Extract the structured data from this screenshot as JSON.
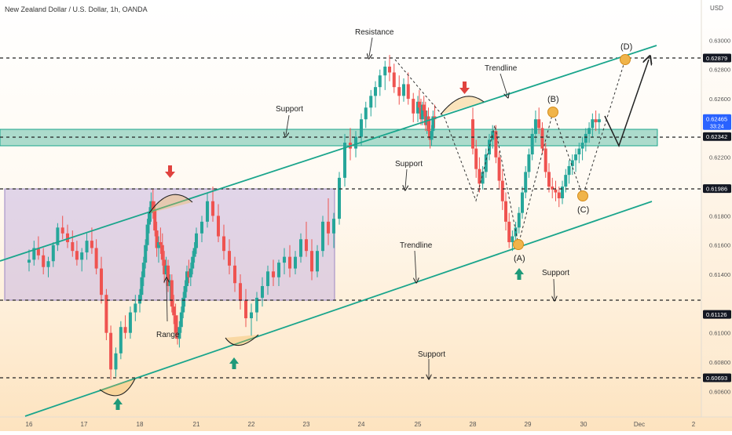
{
  "chart_data": {
    "type": "candlestick",
    "title": "New Zealand Dollar / U.S. Dollar, 1h, OANDA",
    "currency": "USD",
    "x_ticks": [
      "16",
      "17",
      "18",
      "21",
      "22",
      "23",
      "24",
      "25",
      "28",
      "29",
      "30",
      "Dec",
      "2"
    ],
    "y_ticks": [
      "0.63000",
      "0.62800",
      "0.62600",
      "0.62200",
      "0.62000",
      "0.61800",
      "0.61600",
      "0.61400",
      "0.61000",
      "0.60800",
      "0.60600"
    ],
    "price_tags": [
      {
        "value": "0.62879",
        "style": "dark"
      },
      {
        "value": "0.62465",
        "style": "blue",
        "sub": "33:24"
      },
      {
        "value": "0.62342",
        "style": "dark"
      },
      {
        "value": "0.61986",
        "style": "dark"
      },
      {
        "value": "0.61126",
        "style": "dark"
      },
      {
        "value": "0.60693",
        "style": "dark"
      }
    ],
    "ylim": [
      0.6053,
      0.632
    ],
    "candles": [
      [
        16.0,
        0.6148,
        0.6157,
        0.6142,
        0.615
      ],
      [
        16.09,
        0.615,
        0.6163,
        0.6146,
        0.6158
      ],
      [
        16.17,
        0.6158,
        0.6166,
        0.615,
        0.6153
      ],
      [
        16.26,
        0.6153,
        0.6158,
        0.614,
        0.6145
      ],
      [
        16.35,
        0.6145,
        0.6152,
        0.6138,
        0.6149
      ],
      [
        16.44,
        0.6149,
        0.6162,
        0.6145,
        0.616
      ],
      [
        16.52,
        0.616,
        0.6175,
        0.6156,
        0.6172
      ],
      [
        16.61,
        0.6172,
        0.618,
        0.6164,
        0.6168
      ],
      [
        16.7,
        0.6168,
        0.6174,
        0.6158,
        0.6162
      ],
      [
        16.79,
        0.6162,
        0.617,
        0.6152,
        0.6156
      ],
      [
        16.87,
        0.6156,
        0.6163,
        0.6146,
        0.615
      ],
      [
        16.96,
        0.615,
        0.6158,
        0.6142,
        0.6155
      ],
      [
        17.05,
        0.6155,
        0.6168,
        0.615,
        0.6163
      ],
      [
        17.14,
        0.6163,
        0.6172,
        0.6154,
        0.6158
      ],
      [
        17.22,
        0.6158,
        0.6164,
        0.614,
        0.6144
      ],
      [
        17.31,
        0.6144,
        0.6152,
        0.612,
        0.6126
      ],
      [
        17.4,
        0.6126,
        0.613,
        0.6095,
        0.61
      ],
      [
        17.48,
        0.61,
        0.6105,
        0.6068,
        0.6075
      ],
      [
        17.57,
        0.6075,
        0.609,
        0.607,
        0.6086
      ],
      [
        17.66,
        0.6086,
        0.6108,
        0.6082,
        0.6104
      ],
      [
        17.74,
        0.6104,
        0.6112,
        0.6096,
        0.61
      ],
      [
        17.83,
        0.61,
        0.6118,
        0.6096,
        0.6114
      ],
      [
        17.92,
        0.6114,
        0.6126,
        0.6108,
        0.612
      ],
      [
        18.0,
        0.612,
        0.613,
        0.6114,
        0.6126
      ],
      [
        18.1,
        0.6126,
        0.6142,
        0.6122,
        0.6138
      ],
      [
        18.2,
        0.6138,
        0.6152,
        0.6132,
        0.6148
      ],
      [
        18.3,
        0.6148,
        0.6164,
        0.6144,
        0.616
      ],
      [
        18.4,
        0.616,
        0.6178,
        0.6156,
        0.6174
      ],
      [
        18.5,
        0.6174,
        0.6186,
        0.6168,
        0.6182
      ],
      [
        18.6,
        0.6182,
        0.6196,
        0.6176,
        0.619
      ],
      [
        18.7,
        0.619,
        0.6198,
        0.6178,
        0.6184
      ],
      [
        18.8,
        0.6184,
        0.619,
        0.6166,
        0.617
      ],
      [
        18.9,
        0.617,
        0.6176,
        0.6152,
        0.6158
      ],
      [
        19.0,
        0.6158,
        0.6166,
        0.6148,
        0.6162
      ],
      [
        19.1,
        0.6162,
        0.6172,
        0.6154,
        0.616
      ],
      [
        19.2,
        0.616,
        0.6168,
        0.6146,
        0.615
      ],
      [
        19.3,
        0.615,
        0.6156,
        0.6134,
        0.614
      ],
      [
        19.4,
        0.614,
        0.6152,
        0.6136,
        0.6146
      ],
      [
        19.5,
        0.6146,
        0.615,
        0.6128,
        0.6132
      ],
      [
        19.6,
        0.6132,
        0.614,
        0.6122,
        0.6136
      ],
      [
        19.7,
        0.6136,
        0.614,
        0.6114,
        0.6118
      ],
      [
        19.8,
        0.6118,
        0.6126,
        0.6106,
        0.6112
      ],
      [
        19.9,
        0.6112,
        0.612,
        0.6096,
        0.61
      ],
      [
        20.0,
        0.61,
        0.6112,
        0.6092,
        0.6096
      ],
      [
        20.1,
        0.6096,
        0.6108,
        0.609,
        0.6104
      ],
      [
        20.2,
        0.6104,
        0.6118,
        0.61,
        0.6114
      ],
      [
        20.3,
        0.6114,
        0.6128,
        0.611,
        0.6124
      ],
      [
        20.4,
        0.6124,
        0.6136,
        0.6118,
        0.6132
      ],
      [
        20.5,
        0.6132,
        0.6146,
        0.6128,
        0.6142
      ],
      [
        20.6,
        0.6142,
        0.615,
        0.6134,
        0.6138
      ],
      [
        20.7,
        0.6138,
        0.6148,
        0.6132,
        0.6144
      ],
      [
        20.8,
        0.6144,
        0.6156,
        0.614,
        0.6152
      ],
      [
        20.9,
        0.6152,
        0.6162,
        0.6148,
        0.6158
      ],
      [
        21.0,
        0.6158,
        0.6172,
        0.6154,
        0.6168
      ],
      [
        21.1,
        0.6168,
        0.618,
        0.6162,
        0.6176
      ],
      [
        21.2,
        0.6176,
        0.6196,
        0.6172,
        0.619
      ],
      [
        21.3,
        0.619,
        0.62,
        0.6176,
        0.618
      ],
      [
        21.4,
        0.618,
        0.6188,
        0.6162,
        0.6166
      ],
      [
        21.5,
        0.6166,
        0.6174,
        0.615,
        0.6156
      ],
      [
        21.6,
        0.6156,
        0.6164,
        0.614,
        0.6146
      ],
      [
        21.7,
        0.6146,
        0.6152,
        0.6128,
        0.6134
      ],
      [
        21.8,
        0.6134,
        0.614,
        0.6116,
        0.6122
      ],
      [
        21.9,
        0.6122,
        0.613,
        0.6104,
        0.611
      ],
      [
        22.0,
        0.611,
        0.612,
        0.6098,
        0.6114
      ],
      [
        22.1,
        0.6114,
        0.6128,
        0.6108,
        0.6124
      ],
      [
        22.2,
        0.6124,
        0.6138,
        0.6118,
        0.6132
      ],
      [
        22.3,
        0.6132,
        0.6146,
        0.6126,
        0.6142
      ],
      [
        22.4,
        0.6142,
        0.615,
        0.6132,
        0.6138
      ],
      [
        22.5,
        0.6138,
        0.615,
        0.6132,
        0.6148
      ],
      [
        22.6,
        0.6148,
        0.6158,
        0.614,
        0.6152
      ],
      [
        22.7,
        0.6152,
        0.616,
        0.6138,
        0.6144
      ],
      [
        22.8,
        0.6144,
        0.6156,
        0.614,
        0.6152
      ],
      [
        22.9,
        0.6152,
        0.6168,
        0.6148,
        0.6164
      ],
      [
        23.0,
        0.6164,
        0.6176,
        0.6152,
        0.6156
      ],
      [
        23.1,
        0.6156,
        0.6164,
        0.6136,
        0.6142
      ],
      [
        23.2,
        0.6142,
        0.616,
        0.6138,
        0.6156
      ],
      [
        23.3,
        0.6156,
        0.618,
        0.6152,
        0.6176
      ],
      [
        23.4,
        0.6176,
        0.6192,
        0.616,
        0.6168
      ],
      [
        23.5,
        0.6168,
        0.6182,
        0.6158,
        0.6178
      ],
      [
        23.6,
        0.6178,
        0.621,
        0.6174,
        0.6206
      ],
      [
        23.7,
        0.6206,
        0.6236,
        0.62,
        0.623
      ],
      [
        23.8,
        0.623,
        0.624,
        0.6218,
        0.6226
      ],
      [
        23.9,
        0.6226,
        0.6238,
        0.622,
        0.6234
      ],
      [
        24.0,
        0.6234,
        0.625,
        0.6228,
        0.6246
      ],
      [
        24.08,
        0.6246,
        0.6258,
        0.624,
        0.6254
      ],
      [
        24.17,
        0.6254,
        0.6266,
        0.6248,
        0.6262
      ],
      [
        24.25,
        0.6262,
        0.6272,
        0.6254,
        0.6268
      ],
      [
        24.33,
        0.6268,
        0.628,
        0.6262,
        0.6276
      ],
      [
        24.42,
        0.6276,
        0.6286,
        0.6266,
        0.6282
      ],
      [
        24.5,
        0.6282,
        0.629,
        0.6272,
        0.6278
      ],
      [
        24.58,
        0.6278,
        0.6284,
        0.6264,
        0.6268
      ],
      [
        24.67,
        0.6268,
        0.6276,
        0.6256,
        0.6262
      ],
      [
        24.75,
        0.6262,
        0.6274,
        0.6258,
        0.627
      ],
      [
        24.83,
        0.627,
        0.6278,
        0.6256,
        0.626
      ],
      [
        24.92,
        0.626,
        0.6264,
        0.6244,
        0.625
      ],
      [
        25.0,
        0.625,
        0.6262,
        0.6244,
        0.6258
      ],
      [
        25.08,
        0.6258,
        0.6266,
        0.625,
        0.6254
      ],
      [
        25.17,
        0.6254,
        0.626,
        0.6242,
        0.6246
      ],
      [
        25.25,
        0.6246,
        0.6258,
        0.6242,
        0.6256
      ],
      [
        25.33,
        0.6256,
        0.6262,
        0.6248,
        0.6252
      ],
      [
        25.42,
        0.6252,
        0.6258,
        0.6238,
        0.6242
      ],
      [
        25.5,
        0.6242,
        0.6252,
        0.6236,
        0.6248
      ],
      [
        25.58,
        0.6248,
        0.6254,
        0.6234,
        0.6238
      ],
      [
        25.67,
        0.6238,
        0.6246,
        0.6226,
        0.6232
      ],
      [
        25.75,
        0.6232,
        0.6242,
        0.6228,
        0.6238
      ],
      [
        25.83,
        0.6238,
        0.6252,
        0.6234,
        0.6248
      ],
      [
        25.92,
        0.6248,
        0.6256,
        0.624,
        0.6246
      ],
      [
        28.0,
        0.6246,
        0.6254,
        0.6222,
        0.6226
      ],
      [
        28.06,
        0.6226,
        0.6232,
        0.6206,
        0.6212
      ],
      [
        28.12,
        0.6212,
        0.622,
        0.6196,
        0.6202
      ],
      [
        28.18,
        0.6202,
        0.6214,
        0.6198,
        0.621
      ],
      [
        28.24,
        0.621,
        0.6226,
        0.6206,
        0.6222
      ],
      [
        28.3,
        0.6222,
        0.6236,
        0.6218,
        0.6232
      ],
      [
        28.36,
        0.6232,
        0.6242,
        0.6226,
        0.6238
      ],
      [
        28.42,
        0.6238,
        0.6242,
        0.6216,
        0.622
      ],
      [
        28.48,
        0.622,
        0.6224,
        0.6198,
        0.6204
      ],
      [
        28.54,
        0.6204,
        0.6212,
        0.6184,
        0.619
      ],
      [
        28.6,
        0.619,
        0.6196,
        0.617,
        0.6176
      ],
      [
        28.66,
        0.6176,
        0.6182,
        0.6158,
        0.6162
      ],
      [
        28.72,
        0.6162,
        0.617,
        0.6156,
        0.6166
      ],
      [
        28.78,
        0.6166,
        0.6176,
        0.616,
        0.6172
      ],
      [
        28.84,
        0.6172,
        0.6186,
        0.6168,
        0.6182
      ],
      [
        28.9,
        0.6182,
        0.62,
        0.6178,
        0.6196
      ],
      [
        28.96,
        0.6196,
        0.6214,
        0.6192,
        0.621
      ],
      [
        29.02,
        0.621,
        0.6226,
        0.6206,
        0.6222
      ],
      [
        29.08,
        0.6222,
        0.624,
        0.6218,
        0.6236
      ],
      [
        29.14,
        0.6236,
        0.6252,
        0.623,
        0.6246
      ],
      [
        29.2,
        0.6246,
        0.6254,
        0.6236,
        0.624
      ],
      [
        29.26,
        0.624,
        0.6244,
        0.6222,
        0.6226
      ],
      [
        29.32,
        0.6226,
        0.623,
        0.6206,
        0.621
      ],
      [
        29.38,
        0.621,
        0.6216,
        0.6196,
        0.62
      ],
      [
        29.44,
        0.62,
        0.6206,
        0.6192,
        0.6198
      ],
      [
        29.5,
        0.6198,
        0.6204,
        0.619,
        0.6196
      ],
      [
        29.56,
        0.6196,
        0.62,
        0.6186,
        0.6192
      ],
      [
        29.62,
        0.6192,
        0.6204,
        0.6188,
        0.62
      ],
      [
        29.68,
        0.62,
        0.6212,
        0.6196,
        0.6208
      ],
      [
        29.74,
        0.6208,
        0.6218,
        0.6202,
        0.6214
      ],
      [
        29.8,
        0.6214,
        0.6222,
        0.6208,
        0.6218
      ],
      [
        29.86,
        0.6218,
        0.6226,
        0.621,
        0.6222
      ],
      [
        29.92,
        0.6222,
        0.623,
        0.6216,
        0.6226
      ],
      [
        29.98,
        0.6226,
        0.6234,
        0.6218,
        0.623
      ],
      [
        30.04,
        0.623,
        0.624,
        0.6224,
        0.6236
      ],
      [
        30.1,
        0.6236,
        0.6244,
        0.623,
        0.624
      ],
      [
        30.16,
        0.624,
        0.625,
        0.6234,
        0.6246
      ],
      [
        30.22,
        0.6246,
        0.6252,
        0.6238,
        0.6244
      ],
      [
        30.28,
        0.6244,
        0.625,
        0.6236,
        0.6246
      ]
    ]
  },
  "annotations": {
    "labels": {
      "resistance": "Resistance",
      "trendline_upper": "Trendline",
      "support_top_left": "Support",
      "support_mid": "Support",
      "range": "Range",
      "trendline_lower": "Trendline",
      "support_right": "Support",
      "support_bottom": "Support",
      "wave_a": "(A)",
      "wave_b": "(B)",
      "wave_c": "(C)",
      "wave_d": "(D)"
    },
    "colors": {
      "trendline": "#1aa58c",
      "zone_fill": "#7fc9b6",
      "range_fill": "#c8b7e0",
      "up_candle": "#26a69a",
      "down_candle": "#ef5350",
      "marker_fill": "#f0b44a",
      "arrow_red": "#e0433f",
      "arrow_green": "#1f9a7a",
      "price_tag_blue": "#2962ff"
    }
  }
}
